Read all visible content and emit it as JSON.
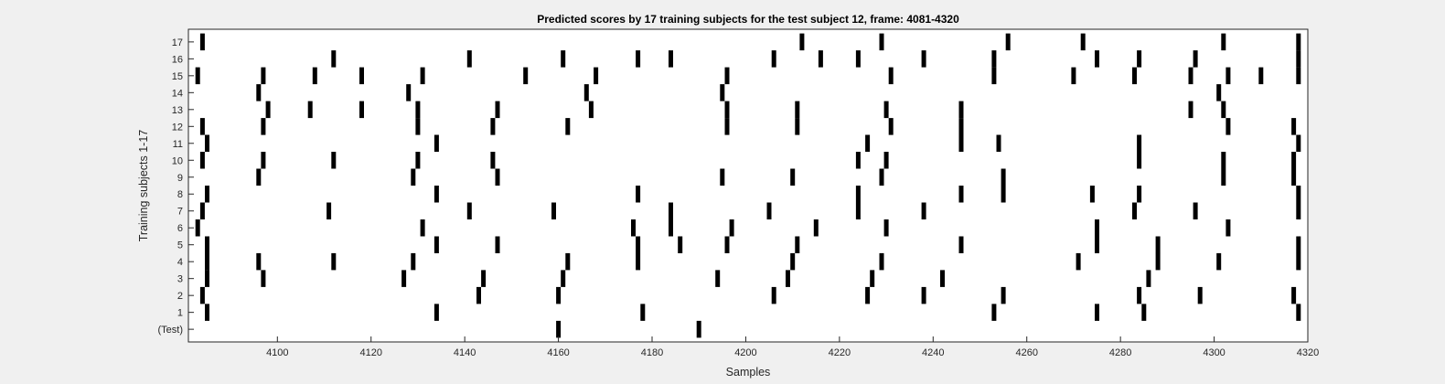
{
  "chart_data": {
    "type": "raster",
    "title": "Predicted scores by 17 training subjects for the test subject 12, frame: 4081-4320",
    "xlabel": "Samples",
    "ylabel": "Training subjects 1-17",
    "xlim": [
      4081,
      4320
    ],
    "xticks": [
      "4100",
      "4120",
      "4140",
      "4160",
      "4180",
      "4200",
      "4220",
      "4240",
      "4260",
      "4280",
      "4300",
      "4320"
    ],
    "yticks": [
      "(Test)",
      "1",
      "2",
      "3",
      "4",
      "5",
      "6",
      "7",
      "8",
      "9",
      "10",
      "11",
      "12",
      "13",
      "14",
      "15",
      "16",
      "17"
    ],
    "colors": {
      "mark": "#000000",
      "axes_bg": "#ffffff",
      "figure_bg": "#f0f0f0"
    },
    "rows": [
      {
        "label": "(Test)",
        "events": [
          4160,
          4190
        ]
      },
      {
        "label": "1",
        "events": [
          4085,
          4134,
          4178,
          4253,
          4275,
          4285,
          4318
        ]
      },
      {
        "label": "2",
        "events": [
          4084,
          4143,
          4160,
          4206,
          4226,
          4238,
          4255,
          4284,
          4297,
          4317
        ]
      },
      {
        "label": "3",
        "events": [
          4085,
          4097,
          4127,
          4144,
          4161,
          4194,
          4209,
          4227,
          4242,
          4286
        ]
      },
      {
        "label": "4",
        "events": [
          4085,
          4096,
          4112,
          4129,
          4162,
          4177,
          4210,
          4229,
          4271,
          4288,
          4301,
          4318
        ]
      },
      {
        "label": "5",
        "events": [
          4085,
          4134,
          4147,
          4177,
          4186,
          4196,
          4211,
          4246,
          4275,
          4288,
          4318
        ]
      },
      {
        "label": "6",
        "events": [
          4083,
          4131,
          4176,
          4184,
          4197,
          4215,
          4230,
          4275,
          4303
        ]
      },
      {
        "label": "7",
        "events": [
          4084,
          4111,
          4141,
          4159,
          4184,
          4205,
          4224,
          4238,
          4283,
          4296,
          4318
        ]
      },
      {
        "label": "8",
        "events": [
          4085,
          4134,
          4177,
          4224,
          4246,
          4255,
          4274,
          4284,
          4318
        ]
      },
      {
        "label": "9",
        "events": [
          4096,
          4129,
          4147,
          4195,
          4210,
          4229,
          4255,
          4302,
          4317
        ]
      },
      {
        "label": "10",
        "events": [
          4084,
          4097,
          4112,
          4130,
          4146,
          4224,
          4230,
          4284,
          4302,
          4317
        ]
      },
      {
        "label": "11",
        "events": [
          4085,
          4134,
          4226,
          4246,
          4254,
          4284,
          4318
        ]
      },
      {
        "label": "12",
        "events": [
          4084,
          4097,
          4130,
          4146,
          4162,
          4196,
          4211,
          4231,
          4246,
          4303,
          4317
        ]
      },
      {
        "label": "13",
        "events": [
          4098,
          4107,
          4118,
          4130,
          4147,
          4167,
          4196,
          4211,
          4230,
          4246,
          4295,
          4302
        ]
      },
      {
        "label": "14",
        "events": [
          4096,
          4128,
          4166,
          4195,
          4301
        ]
      },
      {
        "label": "15",
        "events": [
          4083,
          4097,
          4108,
          4118,
          4131,
          4153,
          4168,
          4196,
          4231,
          4253,
          4270,
          4283,
          4295,
          4303,
          4310,
          4318
        ]
      },
      {
        "label": "16",
        "events": [
          4112,
          4141,
          4161,
          4177,
          4184,
          4206,
          4216,
          4224,
          4238,
          4253,
          4275,
          4284,
          4296,
          4318
        ]
      },
      {
        "label": "17",
        "events": [
          4084,
          4212,
          4229,
          4256,
          4272,
          4302,
          4318
        ]
      }
    ]
  }
}
